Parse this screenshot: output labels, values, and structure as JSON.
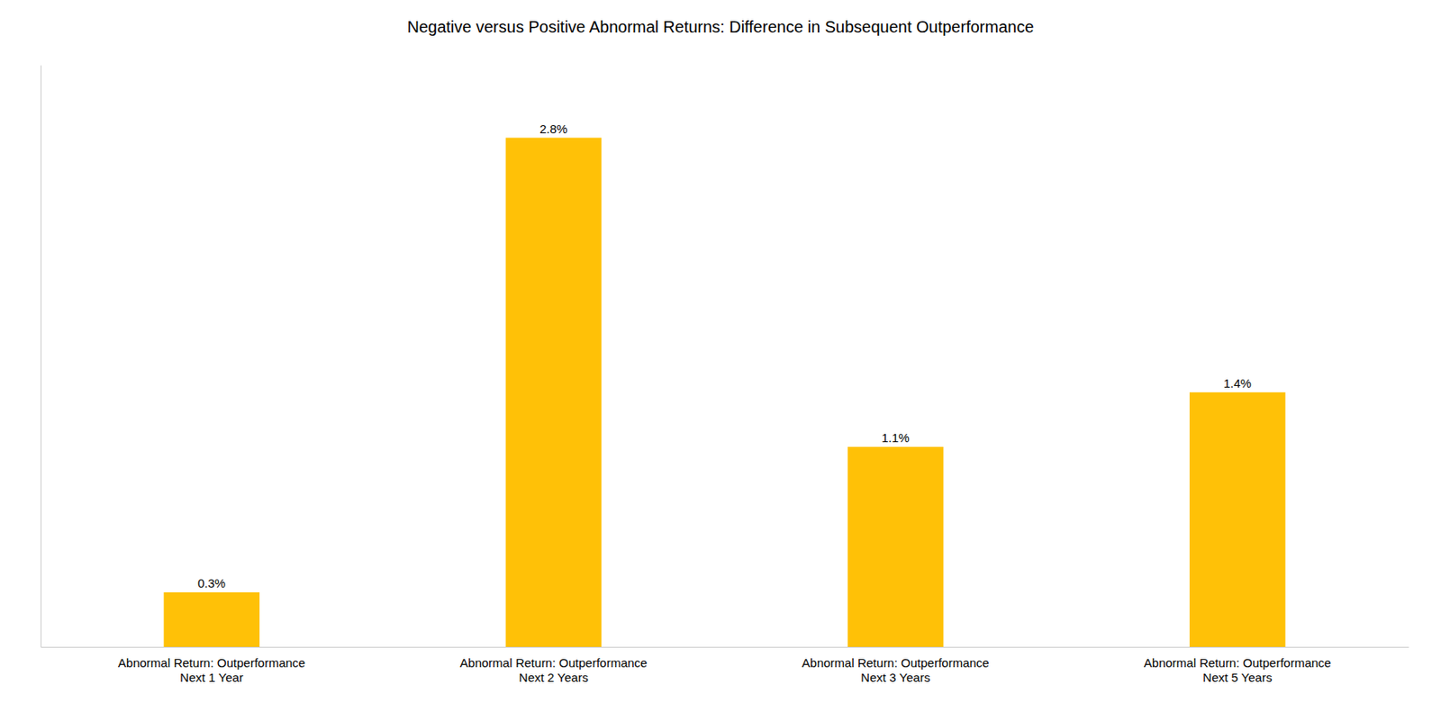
{
  "chart_data": {
    "type": "bar",
    "title": "Negative versus Positive Abnormal Returns: Difference in Subsequent Outperformance",
    "categories": [
      "Abnormal Return: Outperformance\nNext 1 Year",
      "Abnormal Return: Outperformance\nNext 2 Years",
      "Abnormal Return: Outperformance\nNext 3 Years",
      "Abnormal Return: Outperformance\nNext 5 Years"
    ],
    "values": [
      0.3,
      2.8,
      1.1,
      1.4
    ],
    "value_labels": [
      "0.3%",
      "2.8%",
      "1.1%",
      "1.4%"
    ],
    "color": "#FFC107",
    "ylim": [
      0,
      3.2
    ],
    "data_labels": true,
    "tick_labels": "x"
  }
}
